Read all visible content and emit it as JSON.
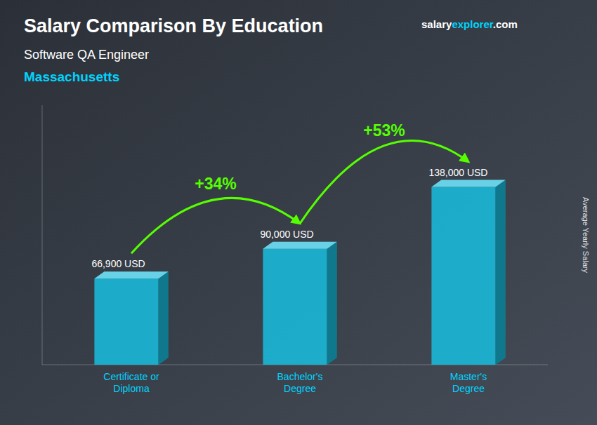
{
  "chart_data": {
    "type": "bar",
    "title": "Salary Comparison By Education",
    "subtitle": "Software QA Engineer",
    "location": "Massachusetts",
    "source": [
      "salary",
      "explorer",
      ".com"
    ],
    "y_label": "Average Yearly Salary",
    "categories": [
      "Certificate or\nDiploma",
      "Bachelor's\nDegree",
      "Master's\nDegree"
    ],
    "values": [
      66900,
      90000,
      138000
    ],
    "value_labels": [
      "66,900 USD",
      "90,000 USD",
      "138,000 USD"
    ],
    "data_labels": true,
    "annotations": [
      {
        "text": "+34%",
        "color": "#55ff00"
      },
      {
        "text": "+53%",
        "color": "#55ff00"
      }
    ],
    "color": "#1ab8d8",
    "ylim": [
      0,
      201500
    ],
    "tick_labels": false,
    "grid": false
  }
}
